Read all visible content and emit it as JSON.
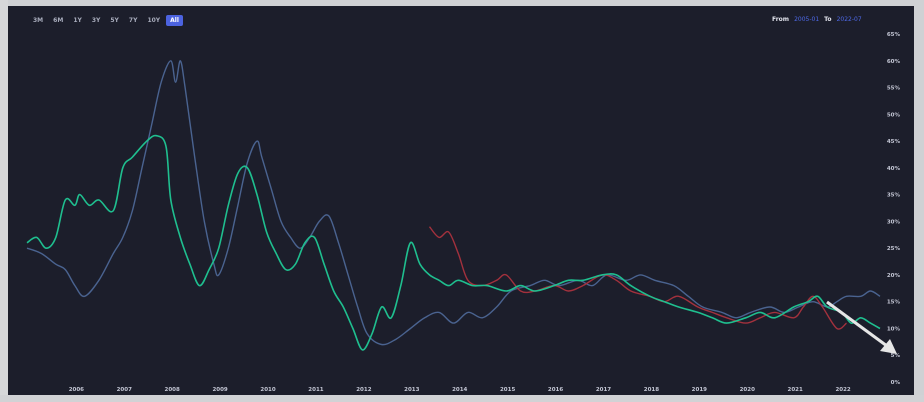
{
  "toolbar": {
    "range_buttons": [
      "3M",
      "6M",
      "1Y",
      "3Y",
      "5Y",
      "7Y",
      "10Y",
      "All"
    ],
    "active_range": "All"
  },
  "date_range": {
    "from_label": "From",
    "from_value": "2005-01",
    "to_label": "To",
    "to_value": "2022-07"
  },
  "colors": {
    "background": "#1c1e2b",
    "series_blue": "#4a6390",
    "series_green": "#1fbf8f",
    "series_red": "#a3313d",
    "arrow": "#e6e6e6",
    "accent": "#4c63e0"
  },
  "chart_data": {
    "type": "line",
    "x_range": [
      2005.0,
      2022.8
    ],
    "ylim": [
      0,
      65
    ],
    "y_ticks": [
      "0%",
      "5%",
      "10%",
      "15%",
      "20%",
      "25%",
      "30%",
      "35%",
      "40%",
      "45%",
      "50%",
      "55%",
      "60%",
      "65%"
    ],
    "x_ticks": [
      "2006",
      "2007",
      "2008",
      "2009",
      "2010",
      "2011",
      "2012",
      "2013",
      "2014",
      "2015",
      "2016",
      "2017",
      "2018",
      "2019",
      "2020",
      "2021",
      "2022"
    ],
    "grid": false,
    "legend": "none",
    "series": [
      {
        "color": "#4a6390",
        "x": [
          2005.0,
          2005.3,
          2005.6,
          2005.8,
          2006.0,
          2006.2,
          2006.5,
          2006.8,
          2007.0,
          2007.2,
          2007.4,
          2007.6,
          2007.8,
          2008.0,
          2008.1,
          2008.2,
          2008.3,
          2008.5,
          2008.7,
          2008.9,
          2009.0,
          2009.2,
          2009.4,
          2009.6,
          2009.8,
          2009.9,
          2010.1,
          2010.3,
          2010.5,
          2010.7,
          2010.9,
          2011.1,
          2011.3,
          2011.5,
          2011.7,
          2011.9,
          2012.1,
          2012.4,
          2012.7,
          2013.0,
          2013.3,
          2013.6,
          2013.9,
          2014.2,
          2014.5,
          2014.8,
          2015.1,
          2015.5,
          2015.8,
          2016.1,
          2016.5,
          2016.8,
          2017.1,
          2017.5,
          2017.8,
          2018.1,
          2018.5,
          2018.8,
          2019.1,
          2019.5,
          2019.8,
          2020.1,
          2020.5,
          2020.8,
          2021.1,
          2021.4,
          2021.7,
          2021.9,
          2022.1,
          2022.4,
          2022.6,
          2022.8
        ],
        "y": [
          25,
          24,
          22,
          21,
          18,
          16,
          19,
          24,
          27,
          32,
          40,
          48,
          56,
          60,
          56,
          60,
          55,
          42,
          30,
          22,
          20,
          25,
          33,
          41,
          45,
          42,
          36,
          30,
          27,
          25,
          27,
          30,
          31,
          26,
          20,
          14,
          9,
          7,
          8,
          10,
          12,
          13,
          11,
          13,
          12,
          14,
          17,
          18,
          19,
          18,
          19,
          18,
          20,
          19,
          20,
          19,
          18,
          16,
          14,
          13,
          12,
          13,
          14,
          13,
          14,
          15,
          14,
          15,
          16,
          16,
          17,
          16
        ]
      },
      {
        "color": "#1fbf8f",
        "x": [
          2005.0,
          2005.2,
          2005.4,
          2005.6,
          2005.8,
          2006.0,
          2006.1,
          2006.3,
          2006.5,
          2006.8,
          2007.0,
          2007.2,
          2007.5,
          2007.7,
          2007.9,
          2008.0,
          2008.2,
          2008.4,
          2008.6,
          2008.8,
          2009.0,
          2009.2,
          2009.4,
          2009.6,
          2009.8,
          2010.0,
          2010.2,
          2010.4,
          2010.6,
          2010.8,
          2011.0,
          2011.2,
          2011.4,
          2011.6,
          2011.8,
          2012.0,
          2012.2,
          2012.4,
          2012.6,
          2012.8,
          2013.0,
          2013.2,
          2013.4,
          2013.6,
          2013.8,
          2014.0,
          2014.3,
          2014.6,
          2015.0,
          2015.3,
          2015.6,
          2016.0,
          2016.3,
          2016.6,
          2017.0,
          2017.3,
          2017.6,
          2018.0,
          2018.3,
          2018.6,
          2019.0,
          2019.3,
          2019.6,
          2020.0,
          2020.3,
          2020.6,
          2021.0,
          2021.3,
          2021.5,
          2021.7,
          2022.0,
          2022.2,
          2022.4,
          2022.6,
          2022.8
        ],
        "y": [
          26,
          27,
          25,
          27,
          34,
          33,
          35,
          33,
          34,
          32,
          40,
          42,
          45,
          46,
          44,
          34,
          27,
          22,
          18,
          21,
          25,
          33,
          39,
          40,
          35,
          28,
          24,
          21,
          22,
          26,
          27,
          22,
          17,
          14,
          10,
          6,
          9,
          14,
          12,
          18,
          26,
          22,
          20,
          19,
          18,
          19,
          18,
          18,
          17,
          18,
          17,
          18,
          19,
          19,
          20,
          20,
          18,
          16,
          15,
          14,
          13,
          12,
          11,
          12,
          13,
          12,
          14,
          15,
          16,
          14,
          13,
          11,
          12,
          11,
          10
        ]
      },
      {
        "color": "#a3313d",
        "x": [
          2013.4,
          2013.6,
          2013.8,
          2014.0,
          2014.2,
          2014.5,
          2014.8,
          2015.0,
          2015.3,
          2015.6,
          2016.0,
          2016.3,
          2016.6,
          2017.0,
          2017.3,
          2017.6,
          2018.0,
          2018.3,
          2018.6,
          2019.0,
          2019.3,
          2019.6,
          2020.0,
          2020.3,
          2020.6,
          2021.0,
          2021.2,
          2021.4,
          2021.6,
          2021.9,
          2022.1
        ],
        "y": [
          29,
          27,
          28,
          24,
          19,
          18,
          19,
          20,
          17,
          17,
          18,
          17,
          18,
          20,
          19,
          17,
          16,
          15,
          16,
          14,
          13,
          12,
          11,
          12,
          13,
          12,
          14,
          16,
          14,
          10,
          11
        ]
      }
    ]
  }
}
